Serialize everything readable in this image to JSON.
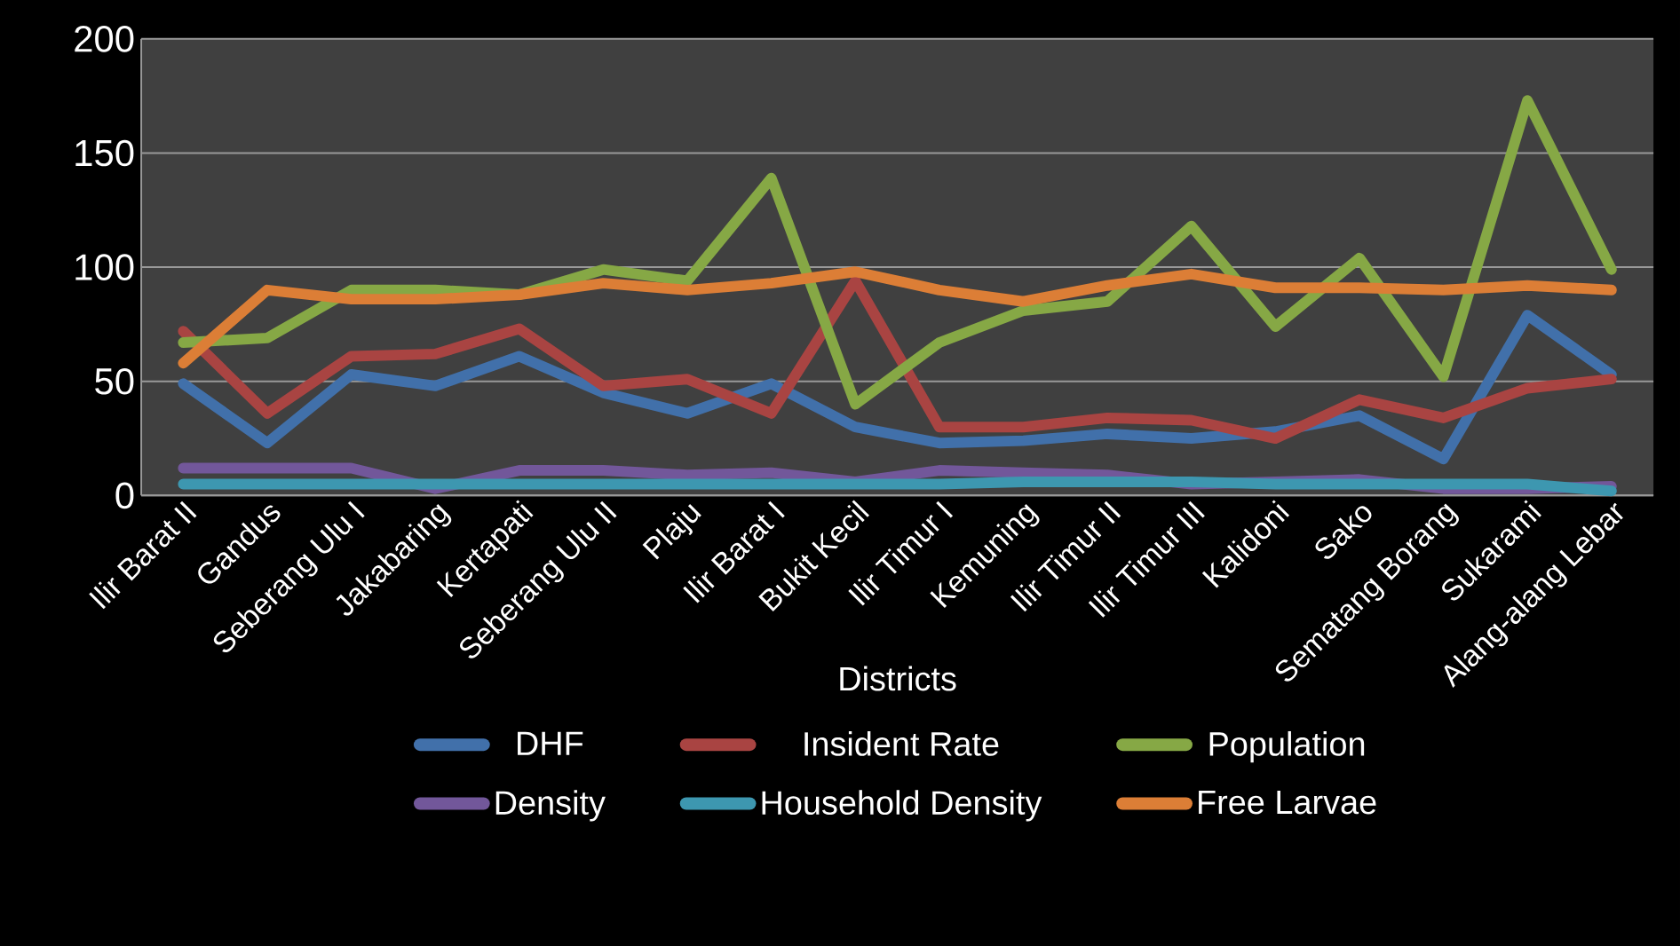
{
  "chart_data": {
    "type": "line",
    "xlabel": "Districts",
    "categories": [
      "Ilir Barat II",
      "Gandus",
      "Seberang Ulu I",
      "Jakabaring",
      "Kertapati",
      "Seberang Ulu II",
      "Plaju",
      "Ilir Barat I",
      "Bukit Kecil",
      "Ilir Timur I",
      "Kemuning",
      "Ilir Timur II",
      "Ilir Timur III",
      "Kalidoni",
      "Sako",
      "Sematang Borang",
      "Sukarami",
      "Alang-alang Lebar"
    ],
    "series": [
      {
        "name": "DHF",
        "color": "#4170aa",
        "values": [
          49,
          23,
          53,
          48,
          61,
          45,
          36,
          49,
          30,
          23,
          24,
          27,
          25,
          28,
          35,
          16,
          79,
          53
        ]
      },
      {
        "name": "Insident Rate",
        "color": "#a94442",
        "values": [
          72,
          36,
          61,
          62,
          73,
          48,
          51,
          36,
          94,
          30,
          30,
          34,
          33,
          25,
          42,
          34,
          47,
          51
        ]
      },
      {
        "name": "Population",
        "color": "#86a845",
        "values": [
          67,
          69,
          90,
          90,
          88,
          99,
          94,
          139,
          40,
          67,
          81,
          85,
          118,
          74,
          104,
          52,
          173,
          99
        ]
      },
      {
        "name": "Density",
        "color": "#72579a",
        "values": [
          12,
          12,
          12,
          3,
          11,
          11,
          9,
          10,
          6,
          11,
          10,
          9,
          5,
          6,
          7,
          3,
          3,
          4
        ]
      },
      {
        "name": "Household Density",
        "color": "#3d97b0",
        "values": [
          5,
          5,
          5,
          5,
          5,
          5,
          5,
          5,
          5,
          5,
          6,
          6,
          6,
          5,
          5,
          5,
          5,
          2
        ]
      },
      {
        "name": "Free Larvae",
        "color": "#dc7e36",
        "values": [
          58,
          90,
          86,
          86,
          88,
          93,
          90,
          93,
          98,
          90,
          85,
          92,
          97,
          91,
          91,
          90,
          92,
          90
        ]
      }
    ],
    "ylim": [
      0,
      200
    ],
    "yticks": [
      0,
      50,
      100,
      150,
      200
    ],
    "grid": "y",
    "legend": "bottom",
    "line_style": "solid"
  }
}
